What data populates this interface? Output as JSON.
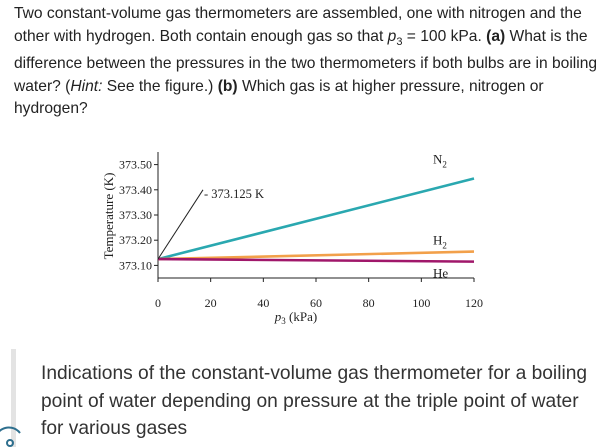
{
  "question": {
    "intro": "Two constant-volume gas thermometers are assembled, one with nitrogen and the other with hydrogen. Both contain enough gas so that ",
    "p_symbol": "p",
    "p_sub": "3",
    "p_value": " = 100 kPa. ",
    "part_a_label": "(a)",
    "part_a_text": " What is the difference between the pressures in the two thermometers if both bulbs are in boiling water? (",
    "hint_label": "Hint:",
    "hint_text": " See the figure.) ",
    "part_b_label": "(b)",
    "part_b_text": " Which gas is at higher pressure, nitrogen or hydrogen?"
  },
  "caption": "Indications of the constant-volume gas thermometer for a boiling point of water depending on pressure at the triple point of water for various gases",
  "chart_data": {
    "type": "line",
    "title": "",
    "xlabel_prefix": "p",
    "xlabel_sub": "3",
    "xlabel_unit": " (kPa)",
    "ylabel": "Temperature (K)",
    "xlim": [
      0,
      120
    ],
    "ylim": [
      373.05,
      373.55
    ],
    "x_ticks": [
      "0",
      "20",
      "40",
      "60",
      "80",
      "100",
      "120"
    ],
    "y_ticks": [
      "373.10",
      "373.20",
      "373.30",
      "373.40",
      "373.50"
    ],
    "grid": false,
    "annotation": "373.125 K",
    "series": [
      {
        "name": "N2",
        "label_main": "N",
        "label_sub": "2",
        "color": "#2aa8b0",
        "x": [
          0,
          120
        ],
        "y": [
          373.125,
          373.445
        ]
      },
      {
        "name": "H2",
        "label_main": "H",
        "label_sub": "2",
        "color": "#f2a04a",
        "x": [
          0,
          120
        ],
        "y": [
          373.125,
          373.155
        ]
      },
      {
        "name": "He",
        "label_main": "He",
        "label_sub": "",
        "color": "#a0176a",
        "x": [
          0,
          120
        ],
        "y": [
          373.125,
          373.115
        ]
      }
    ]
  }
}
